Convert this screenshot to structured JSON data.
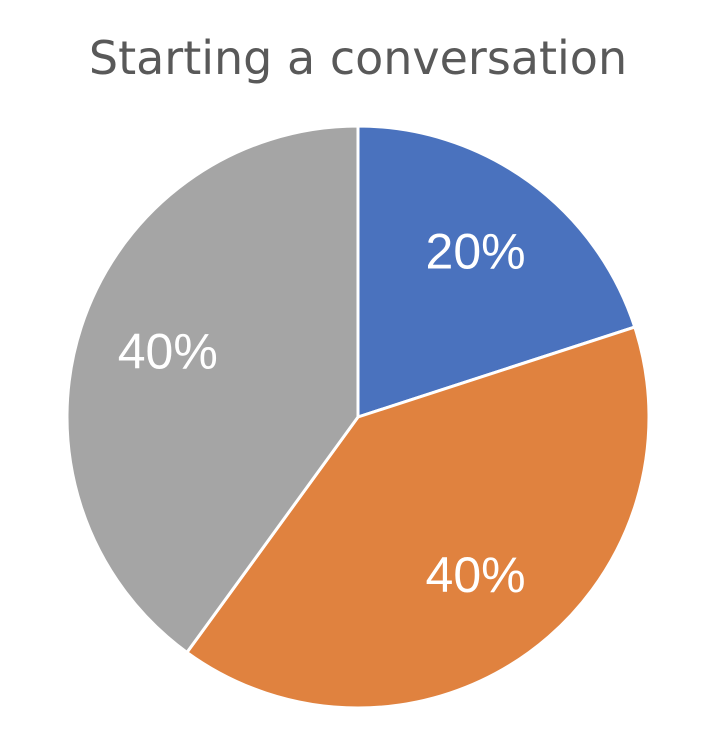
{
  "chart_data": {
    "type": "pie",
    "title": "Starting a conversation",
    "values": [
      20,
      40,
      40
    ],
    "value_labels": [
      "20%",
      "40%",
      "40%"
    ],
    "colors": [
      "#4a72be",
      "#e0823f",
      "#a5a5a5"
    ]
  }
}
